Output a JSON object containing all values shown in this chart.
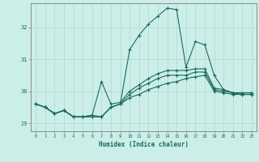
{
  "xlabel": "Humidex (Indice chaleur)",
  "bg_color": "#cceee8",
  "line_color": "#1a6b60",
  "grid_color": "#b0d8d0",
  "xlim_min": -0.5,
  "xlim_max": 23.5,
  "ylim_min": 28.75,
  "ylim_max": 32.75,
  "yticks": [
    29,
    30,
    31,
    32
  ],
  "xticks": [
    0,
    1,
    2,
    3,
    4,
    5,
    6,
    7,
    8,
    9,
    10,
    11,
    12,
    13,
    14,
    15,
    16,
    17,
    18,
    19,
    20,
    21,
    22,
    23
  ],
  "series": [
    [
      29.6,
      29.5,
      29.3,
      29.4,
      29.2,
      29.2,
      29.2,
      29.2,
      29.5,
      29.6,
      29.8,
      29.9,
      30.05,
      30.15,
      30.25,
      30.3,
      30.4,
      30.45,
      30.5,
      30.0,
      29.95,
      29.9,
      29.9,
      29.9
    ],
    [
      29.6,
      29.5,
      29.3,
      29.4,
      29.2,
      29.2,
      29.2,
      29.2,
      29.5,
      29.6,
      29.9,
      30.1,
      30.25,
      30.4,
      30.5,
      30.5,
      30.5,
      30.6,
      30.6,
      30.05,
      30.0,
      29.95,
      29.9,
      29.9
    ],
    [
      29.6,
      29.5,
      29.3,
      29.4,
      29.2,
      29.2,
      29.25,
      30.3,
      29.6,
      29.65,
      30.0,
      30.2,
      30.4,
      30.55,
      30.65,
      30.65,
      30.65,
      30.7,
      30.7,
      30.1,
      30.05,
      29.95,
      29.95,
      29.95
    ],
    [
      29.6,
      29.5,
      29.3,
      29.4,
      29.2,
      29.2,
      29.25,
      29.2,
      29.5,
      29.6,
      31.3,
      31.75,
      32.1,
      32.35,
      32.6,
      32.55,
      30.75,
      31.55,
      31.45,
      30.5,
      30.05,
      29.95,
      29.95,
      29.95
    ]
  ]
}
